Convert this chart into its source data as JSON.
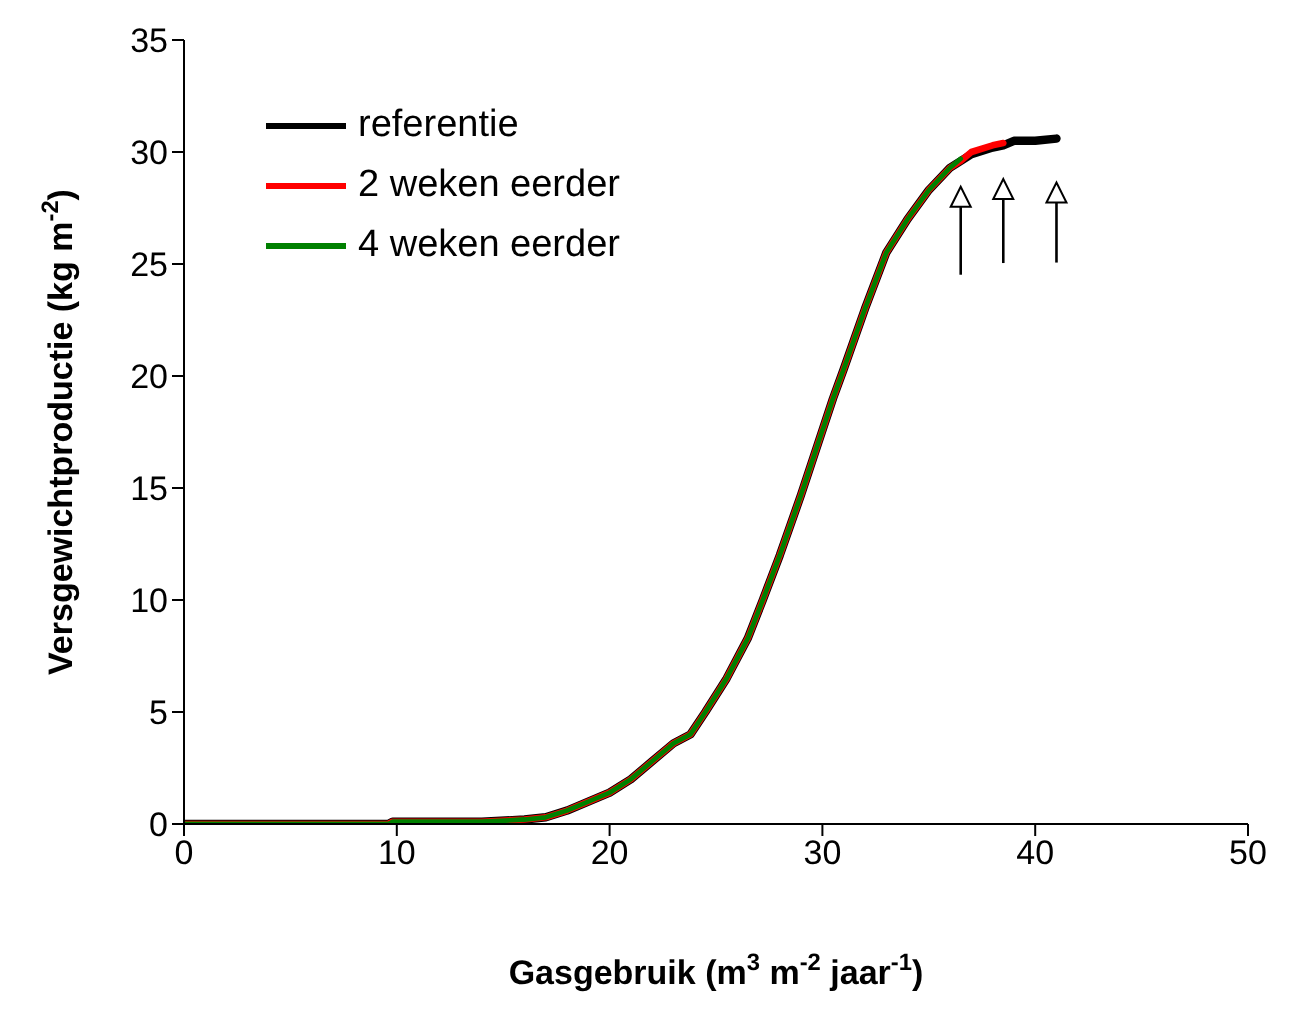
{
  "chart_data": {
    "type": "line",
    "xlabel": "Gasgebruik (m$^{3}$ m$^{-2}$ jaar$^{-1}$)",
    "ylabel": "Versgewichtproductie (kg m$^{-2}$)",
    "xlim": [
      0,
      50
    ],
    "xticks": [
      0,
      10,
      20,
      30,
      40,
      50
    ],
    "ylim": [
      0,
      35
    ],
    "yticks": [
      0,
      5,
      10,
      15,
      20,
      25,
      30,
      35
    ],
    "grid": false,
    "legend": "top left",
    "marker": "none",
    "line_style": "solid",
    "series": [
      {
        "name": "referentie",
        "color": "#000000",
        "x": [
          0,
          9.6,
          9.8,
          14,
          16,
          17,
          18,
          19,
          20,
          21,
          22,
          23,
          23.8,
          24.5,
          25.5,
          26.5,
          27.2,
          28,
          29,
          29.8,
          30.5,
          31,
          32,
          33,
          34,
          35,
          36,
          36.5,
          37,
          38,
          38.5,
          39,
          40,
          41
        ],
        "values": [
          0,
          0,
          0.1,
          0.1,
          0.2,
          0.3,
          0.6,
          1.0,
          1.4,
          2.0,
          2.8,
          3.6,
          4.0,
          5.0,
          6.5,
          8.3,
          10,
          12,
          14.7,
          17,
          19,
          20.3,
          23,
          25.5,
          27,
          28.3,
          29.3,
          29.6,
          29.9,
          30.2,
          30.3,
          30.5,
          30.5,
          30.6
        ]
      },
      {
        "name": "2 weken eerder",
        "color": "#ff0000",
        "x": [
          0,
          9.6,
          9.8,
          14,
          16,
          17,
          18,
          19,
          20,
          21,
          22,
          23,
          23.8,
          24.5,
          25.5,
          26.5,
          27.2,
          28,
          29,
          29.8,
          30.5,
          31,
          32,
          33,
          34,
          35,
          36,
          36.5,
          37,
          38,
          38.5
        ],
        "values": [
          0,
          0,
          0.1,
          0.1,
          0.2,
          0.3,
          0.6,
          1.0,
          1.4,
          2.0,
          2.8,
          3.6,
          4.0,
          5.0,
          6.5,
          8.3,
          10,
          12,
          14.7,
          17,
          19,
          20.3,
          23,
          25.5,
          27,
          28.3,
          29.3,
          29.6,
          30.0,
          30.3,
          30.4
        ]
      },
      {
        "name": "4 weken eerder",
        "color": "#008000",
        "x": [
          0,
          9.6,
          9.8,
          14,
          16,
          17,
          18,
          19,
          20,
          21,
          22,
          23,
          23.8,
          24.5,
          25.5,
          26.5,
          27.2,
          28,
          29,
          29.8,
          30.5,
          31,
          32,
          33,
          34,
          35,
          36,
          36.5
        ],
        "values": [
          0,
          0,
          0.1,
          0.1,
          0.2,
          0.3,
          0.6,
          1.0,
          1.4,
          2.0,
          2.8,
          3.6,
          4.0,
          5.0,
          6.5,
          8.3,
          10,
          12,
          14.7,
          17,
          19,
          20.3,
          23,
          25.5,
          27,
          28.3,
          29.3,
          29.7
        ]
      }
    ]
  }
}
